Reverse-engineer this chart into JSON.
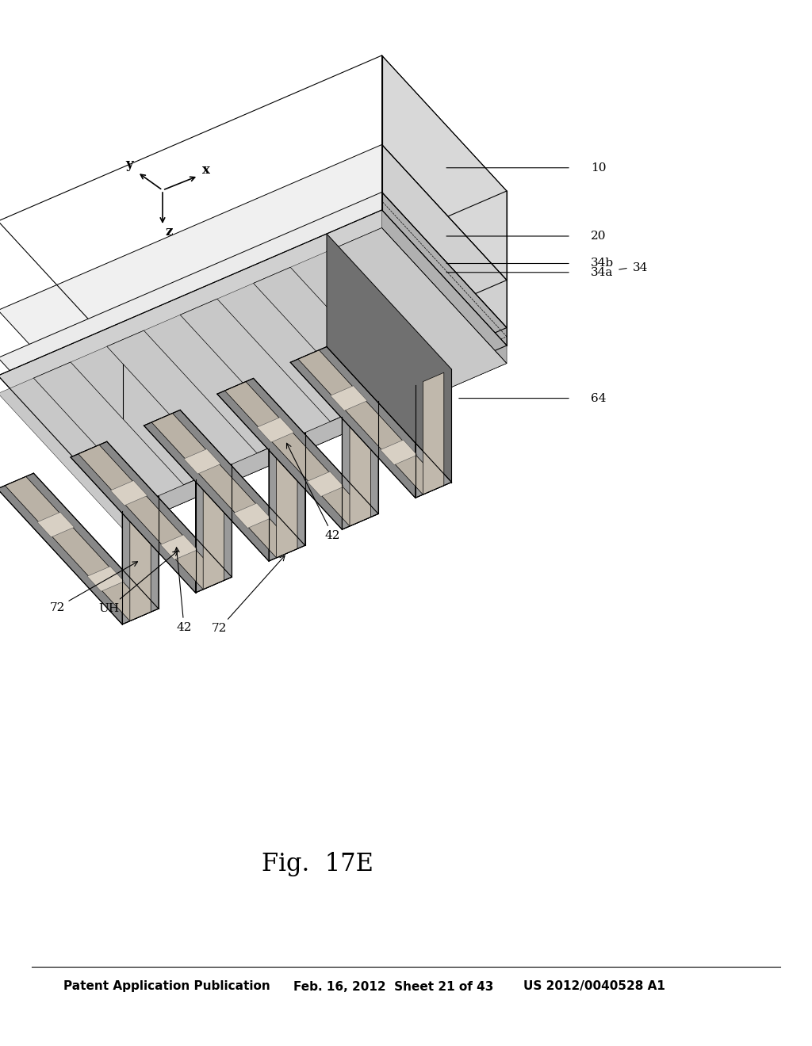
{
  "title": "Fig.  17E",
  "header_left": "Patent Application Publication",
  "header_mid": "Feb. 16, 2012  Sheet 21 of 43",
  "header_right": "US 2012/0040528 A1",
  "bg_color": "#ffffff",
  "label_fontsize": 11,
  "header_fontsize": 11,
  "title_fontsize": 22,
  "colors": {
    "dark_gray": "#7a7a7a",
    "medium_gray": "#a0a0a0",
    "light_gray": "#c8c8c8",
    "dotted_fill": "#d0d0d0",
    "white": "#ffffff",
    "black": "#000000",
    "fin_top": "#888888",
    "fin_side": "#b0b0b0",
    "fin_front": "#d0d0d0",
    "base_white": "#f0f0f0",
    "dotted_pattern": "#c0b8b0"
  }
}
